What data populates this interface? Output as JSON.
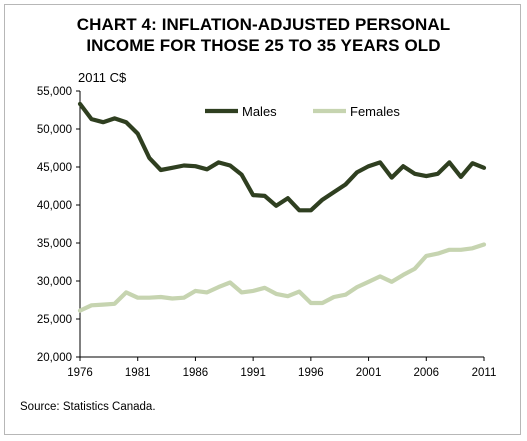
{
  "chart_data": {
    "type": "line",
    "title_lines": [
      "CHART 4: INFLATION-ADJUSTED PERSONAL",
      "INCOME FOR THOSE 25 TO 35 YEARS OLD"
    ],
    "unit_label": "2011 C$",
    "source": "Source: Statistics Canada.",
    "x": [
      1976,
      1977,
      1978,
      1979,
      1980,
      1981,
      1982,
      1983,
      1984,
      1985,
      1986,
      1987,
      1988,
      1989,
      1990,
      1991,
      1992,
      1993,
      1994,
      1995,
      1996,
      1997,
      1998,
      1999,
      2000,
      2001,
      2002,
      2003,
      2004,
      2005,
      2006,
      2007,
      2008,
      2009,
      2010,
      2011
    ],
    "x_ticks": [
      "1976",
      "1981",
      "1986",
      "1991",
      "1996",
      "2001",
      "2006",
      "2011"
    ],
    "y_ticks": [
      "20,000",
      "25,000",
      "30,000",
      "35,000",
      "40,000",
      "45,000",
      "50,000",
      "55,000"
    ],
    "ylim": [
      20000,
      55000
    ],
    "grid": false,
    "legend_position": "top",
    "series": [
      {
        "name": "Males",
        "color": "#2f3f20",
        "values": [
          53300,
          51300,
          50900,
          51400,
          50900,
          49400,
          46200,
          44600,
          44900,
          45200,
          45100,
          44700,
          45600,
          45200,
          44000,
          41300,
          41200,
          39900,
          40900,
          39300,
          39300,
          40700,
          41700,
          42700,
          44300,
          45100,
          45600,
          43600,
          45100,
          44100,
          43800,
          44100,
          45600,
          43700,
          45500,
          44900
        ]
      },
      {
        "name": "Females",
        "color": "#c6d4b0",
        "values": [
          26100,
          26800,
          26900,
          27000,
          28500,
          27800,
          27800,
          27900,
          27700,
          27800,
          28700,
          28500,
          29200,
          29800,
          28500,
          28700,
          29100,
          28300,
          28000,
          28600,
          27100,
          27100,
          27900,
          28200,
          29200,
          29900,
          30600,
          29900,
          30800,
          31600,
          33300,
          33600,
          34100,
          34100,
          34300,
          34800
        ]
      }
    ]
  }
}
